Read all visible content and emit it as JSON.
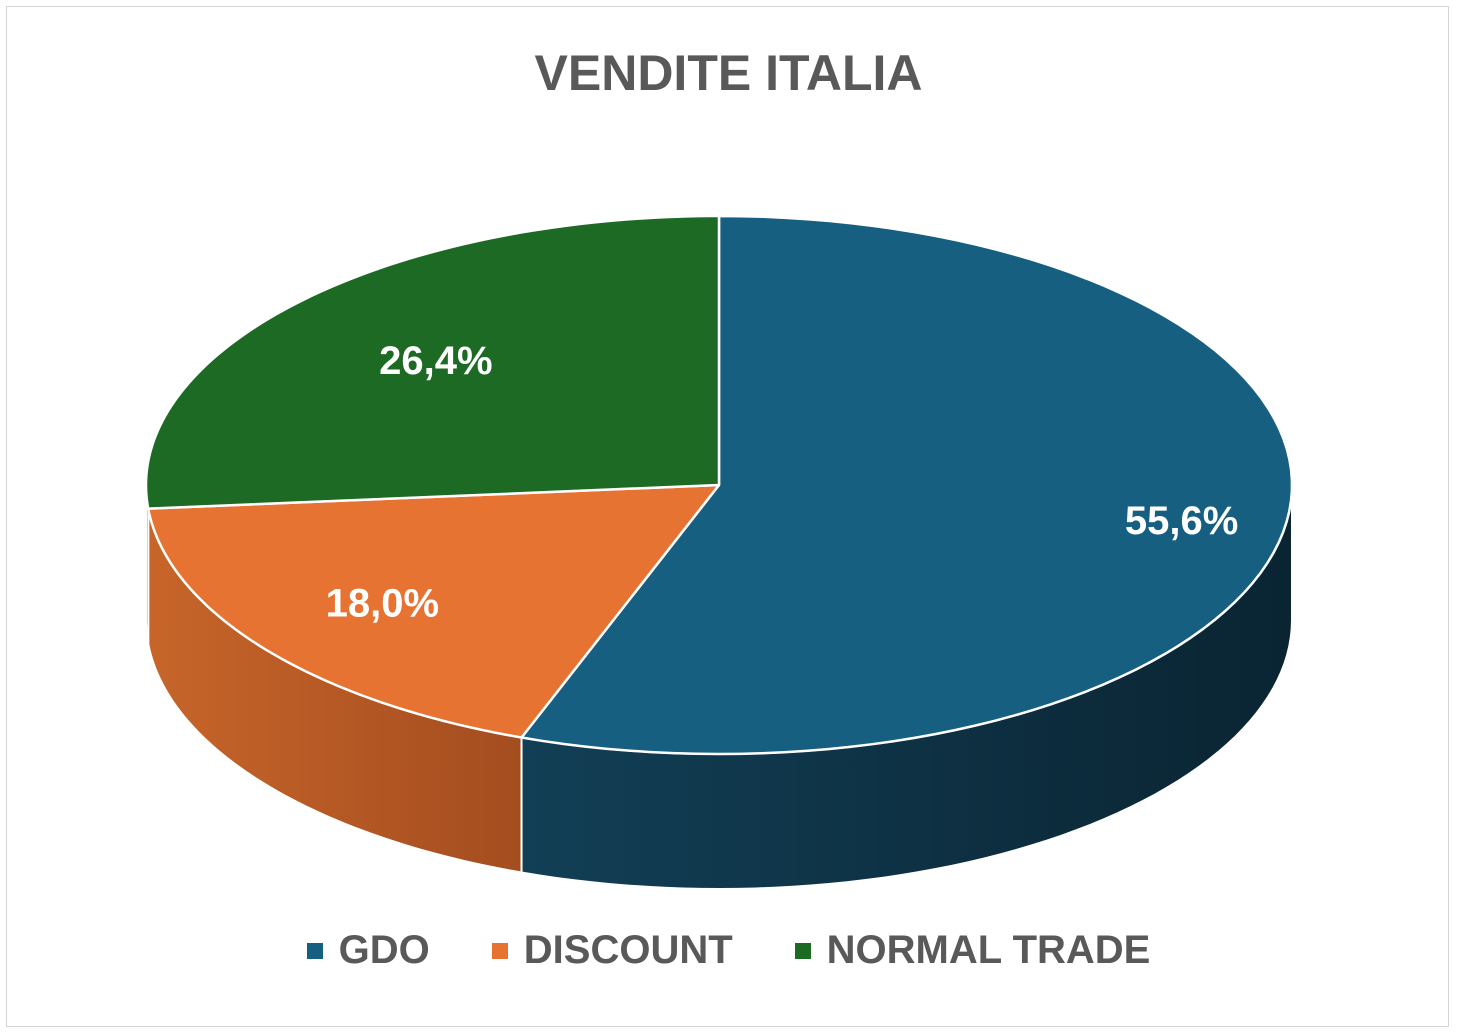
{
  "chart_data": {
    "type": "pie",
    "title": "VENDITE ITALIA",
    "style": "3d",
    "legend_position": "bottom",
    "slices": [
      {
        "label": "GDO",
        "value": 55.6,
        "value_text": "55,6%",
        "color": "#175f80",
        "side_color": "#0c2d3e"
      },
      {
        "label": "DISCOUNT",
        "value": 18.0,
        "value_text": "18,0%",
        "color": "#e77332",
        "side_color": "#b4541f"
      },
      {
        "label": "NORMAL TRADE",
        "value": 26.4,
        "value_text": "26,4%",
        "color": "#1c6a24",
        "side_color": "#134a18"
      }
    ]
  }
}
